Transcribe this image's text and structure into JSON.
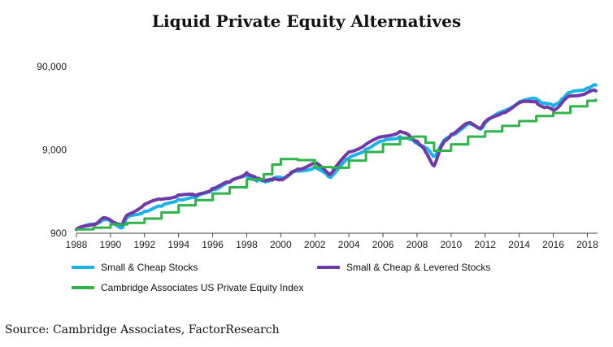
{
  "chart_data": {
    "type": "line",
    "title": "Liquid Private Equity Alternatives",
    "x_ticks": [
      "1988",
      "1990",
      "1992",
      "1994",
      "1996",
      "1998",
      "2000",
      "2002",
      "2004",
      "2006",
      "2008",
      "2010",
      "2012",
      "2014",
      "2016",
      "2018"
    ],
    "y_ticks": [
      "900",
      "9,000",
      "90,000"
    ],
    "y_scale": "log",
    "ylim": [
      900,
      90000
    ],
    "xlim": [
      1988,
      2018.6
    ],
    "grid": false,
    "legend_position": "bottom",
    "series": [
      {
        "name": "Small & Cheap Stocks",
        "color": "#1ab2e8",
        "points": [
          [
            1988.0,
            1000
          ],
          [
            1989.0,
            1150
          ],
          [
            1989.5,
            1300
          ],
          [
            1990.0,
            1250
          ],
          [
            1990.7,
            1050
          ],
          [
            1991.0,
            1400
          ],
          [
            1992.0,
            1650
          ],
          [
            1993.0,
            1900
          ],
          [
            1994.0,
            2300
          ],
          [
            1995.0,
            2400
          ],
          [
            1996.0,
            3000
          ],
          [
            1997.0,
            3700
          ],
          [
            1998.0,
            4500
          ],
          [
            1998.6,
            3800
          ],
          [
            1999.0,
            3800
          ],
          [
            1999.5,
            4000
          ],
          [
            2000.0,
            4200
          ],
          [
            2000.5,
            4500
          ],
          [
            2001.0,
            5000
          ],
          [
            2002.0,
            5600
          ],
          [
            2002.8,
            4300
          ],
          [
            2003.0,
            4400
          ],
          [
            2004.0,
            7200
          ],
          [
            2005.0,
            9200
          ],
          [
            2006.0,
            11500
          ],
          [
            2007.0,
            13000
          ],
          [
            2007.6,
            12000
          ],
          [
            2008.0,
            11000
          ],
          [
            2008.5,
            9500
          ],
          [
            2009.0,
            7500
          ],
          [
            2009.5,
            11000
          ],
          [
            2010.0,
            13500
          ],
          [
            2011.0,
            18500
          ],
          [
            2011.7,
            16000
          ],
          [
            2012.0,
            19000
          ],
          [
            2013.0,
            26000
          ],
          [
            2014.0,
            34000
          ],
          [
            2015.0,
            37000
          ],
          [
            2015.5,
            33000
          ],
          [
            2016.0,
            30000
          ],
          [
            2016.5,
            37000
          ],
          [
            2017.0,
            44000
          ],
          [
            2018.0,
            50000
          ],
          [
            2018.5,
            54000
          ]
        ]
      },
      {
        "name": "Small & Cheap & Levered Stocks",
        "color": "#6f3aa8",
        "points": [
          [
            1988.0,
            1000
          ],
          [
            1989.0,
            1150
          ],
          [
            1989.5,
            1350
          ],
          [
            1990.0,
            1300
          ],
          [
            1990.7,
            1150
          ],
          [
            1991.0,
            1500
          ],
          [
            1992.0,
            2000
          ],
          [
            1993.0,
            2300
          ],
          [
            1994.0,
            2600
          ],
          [
            1995.0,
            2550
          ],
          [
            1996.0,
            3100
          ],
          [
            1997.0,
            3700
          ],
          [
            1998.0,
            4800
          ],
          [
            1998.6,
            4000
          ],
          [
            1999.0,
            4000
          ],
          [
            1999.5,
            3900
          ],
          [
            2000.0,
            4000
          ],
          [
            2000.5,
            4500
          ],
          [
            2001.0,
            5300
          ],
          [
            2002.0,
            6300
          ],
          [
            2002.8,
            4700
          ],
          [
            2003.0,
            4800
          ],
          [
            2004.0,
            8500
          ],
          [
            2005.0,
            10500
          ],
          [
            2006.0,
            13000
          ],
          [
            2007.0,
            15000
          ],
          [
            2007.6,
            13000
          ],
          [
            2008.0,
            11500
          ],
          [
            2008.5,
            8500
          ],
          [
            2009.0,
            5800
          ],
          [
            2009.5,
            10500
          ],
          [
            2010.0,
            13800
          ],
          [
            2011.0,
            19000
          ],
          [
            2011.7,
            16500
          ],
          [
            2012.0,
            19500
          ],
          [
            2013.0,
            25000
          ],
          [
            2014.0,
            33000
          ],
          [
            2015.0,
            34000
          ],
          [
            2015.5,
            29000
          ],
          [
            2016.0,
            27000
          ],
          [
            2016.5,
            33000
          ],
          [
            2017.0,
            40000
          ],
          [
            2018.0,
            44000
          ],
          [
            2018.5,
            46000
          ]
        ]
      },
      {
        "name": "Cambridge Associates US Private Equity Index",
        "color": "#2fb34a",
        "points": [
          [
            1988.0,
            1000
          ],
          [
            1989.0,
            1050
          ],
          [
            1990.0,
            1150
          ],
          [
            1991.0,
            1200
          ],
          [
            1992.0,
            1350
          ],
          [
            1993.0,
            1600
          ],
          [
            1994.0,
            1950
          ],
          [
            1995.0,
            2250
          ],
          [
            1996.0,
            2700
          ],
          [
            1997.0,
            3200
          ],
          [
            1998.0,
            4000
          ],
          [
            1999.0,
            4600
          ],
          [
            1999.5,
            6000
          ],
          [
            2000.0,
            7000
          ],
          [
            2001.0,
            6800
          ],
          [
            2002.0,
            5600
          ],
          [
            2003.0,
            5500
          ],
          [
            2004.0,
            6700
          ],
          [
            2005.0,
            8500
          ],
          [
            2006.0,
            10500
          ],
          [
            2007.0,
            12500
          ],
          [
            2007.8,
            13000
          ],
          [
            2008.5,
            11000
          ],
          [
            2009.0,
            8800
          ],
          [
            2010.0,
            10500
          ],
          [
            2011.0,
            13000
          ],
          [
            2012.0,
            15000
          ],
          [
            2013.0,
            17500
          ],
          [
            2014.0,
            20000
          ],
          [
            2015.0,
            23000
          ],
          [
            2016.0,
            25000
          ],
          [
            2017.0,
            30000
          ],
          [
            2018.0,
            35000
          ],
          [
            2018.5,
            36000
          ]
        ]
      }
    ],
    "source": "Source: Cambridge Associates, FactorResearch"
  }
}
